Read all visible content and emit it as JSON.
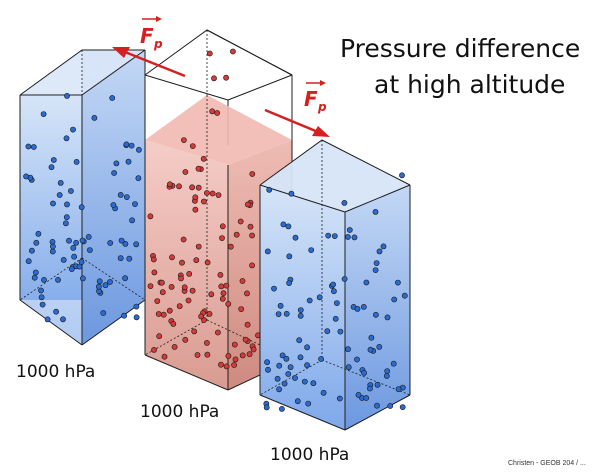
{
  "title": {
    "line1": "Pressure difference",
    "line2": "at high altitude"
  },
  "force_label": "F",
  "force_subscript": "p",
  "columns": [
    {
      "id": "left",
      "pressure_label": "1000 hPa",
      "fill": "blue"
    },
    {
      "id": "middle",
      "pressure_label": "1000 hPa",
      "fill": "red"
    },
    {
      "id": "right",
      "pressure_label": "1000 hPa",
      "fill": "blue"
    }
  ],
  "credit": "Christen - GEOB 204 / ...",
  "colors": {
    "blue_fill_top": "#cfe0f7",
    "blue_fill_bottom": "#7fa9ea",
    "red_fill_top": "#f3c6c0",
    "red_fill_bottom": "#d89a90",
    "blue_dot": "#2a6bd1",
    "red_dot": "#d43a3a",
    "arrow": "#d42020",
    "edge": "#222222"
  }
}
